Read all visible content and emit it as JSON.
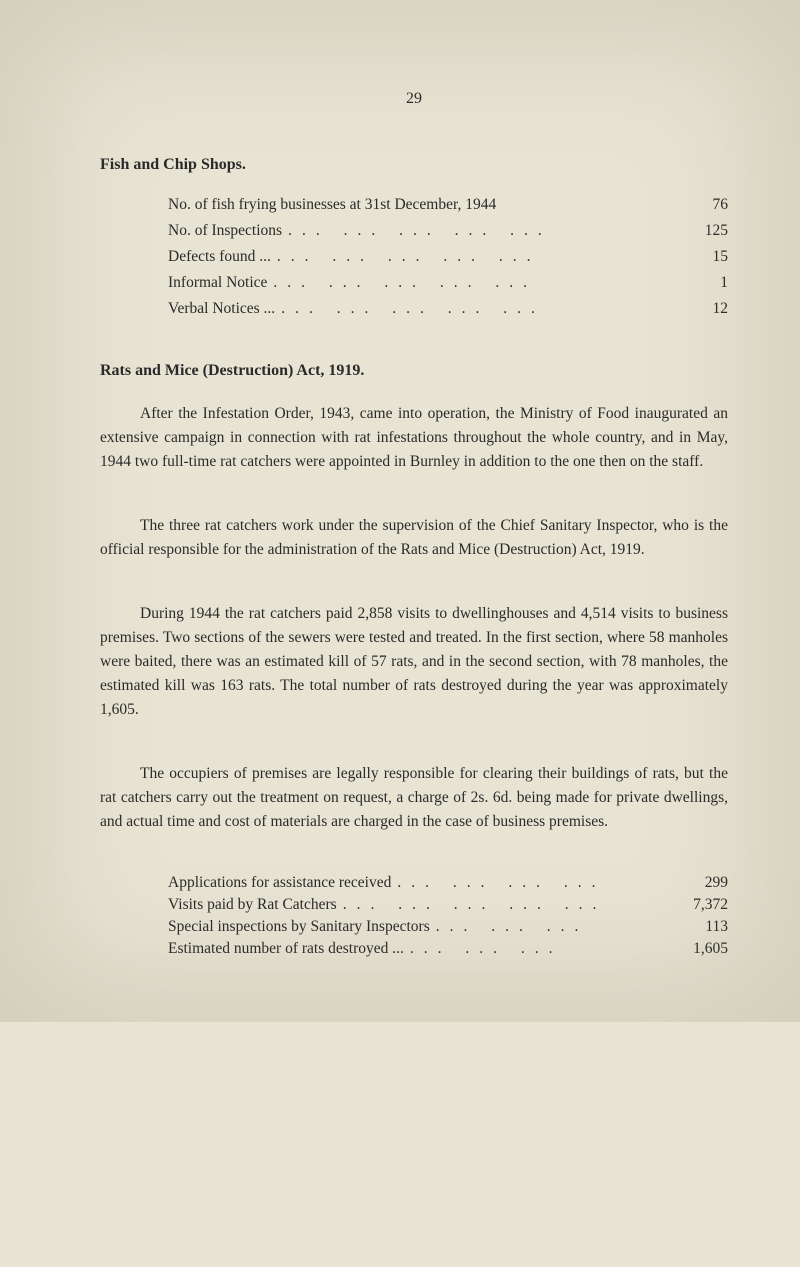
{
  "page_number": "29",
  "section1": {
    "heading": "Fish and Chip Shops.",
    "rows": [
      {
        "label": "No. of fish frying businesses at 31st December, 1944",
        "dots": "",
        "value": "76"
      },
      {
        "label": "No. of Inspections",
        "dots": "...   ...   ...   ...   ...",
        "value": "125"
      },
      {
        "label": "Defects found ...",
        "dots": "...   ...   ...   ...   ...",
        "value": "15"
      },
      {
        "label": "Informal Notice",
        "dots": "...   ...   ...   ...   ...",
        "value": "1"
      },
      {
        "label": "Verbal Notices ...",
        "dots": "...   ...   ...   ...   ...",
        "value": "12"
      }
    ]
  },
  "section2": {
    "heading": "Rats and Mice (Destruction) Act, 1919.",
    "para1": "After the Infestation Order, 1943, came into operation, the Ministry of Food inaugurated an extensive campaign in connection with rat infestations throughout the whole country, and in May, 1944 two full-time rat catchers were appointed in Burnley in addition to the one then on the staff.",
    "para2": "The three rat catchers work under the supervision of the Chief Sanitary Inspector, who is the official responsible for the administration of the Rats and Mice (Destruction) Act, 1919.",
    "para3": "During 1944 the rat catchers paid 2,858 visits to dwellinghouses and 4,514 visits to business premises. Two sections of the sewers were tested and treated. In the first section, where 58 manholes were baited, there was an estimated kill of 57 rats, and in the second section, with 78 manholes, the estimated kill was 163 rats. The total number of rats destroyed during the year was approximately 1,605.",
    "para4": "The occupiers of premises are legally responsible for clearing their buildings of rats, but the rat catchers carry out the treatment on request, a charge of 2s. 6d. being made for private dwellings, and actual time and cost of materials are charged in the case of business premises.",
    "rows": [
      {
        "label": "Applications for assistance received",
        "dots": "...   ...   ...   ...",
        "value": "299"
      },
      {
        "label": "Visits paid by Rat Catchers",
        "dots": "...   ...   ...   ...   ...",
        "value": "7,372"
      },
      {
        "label": "Special inspections by Sanitary Inspectors",
        "dots": "...   ...   ...",
        "value": "113"
      },
      {
        "label": "Estimated number of rats destroyed ...",
        "dots": "...   ...   ...",
        "value": "1,605"
      }
    ]
  }
}
